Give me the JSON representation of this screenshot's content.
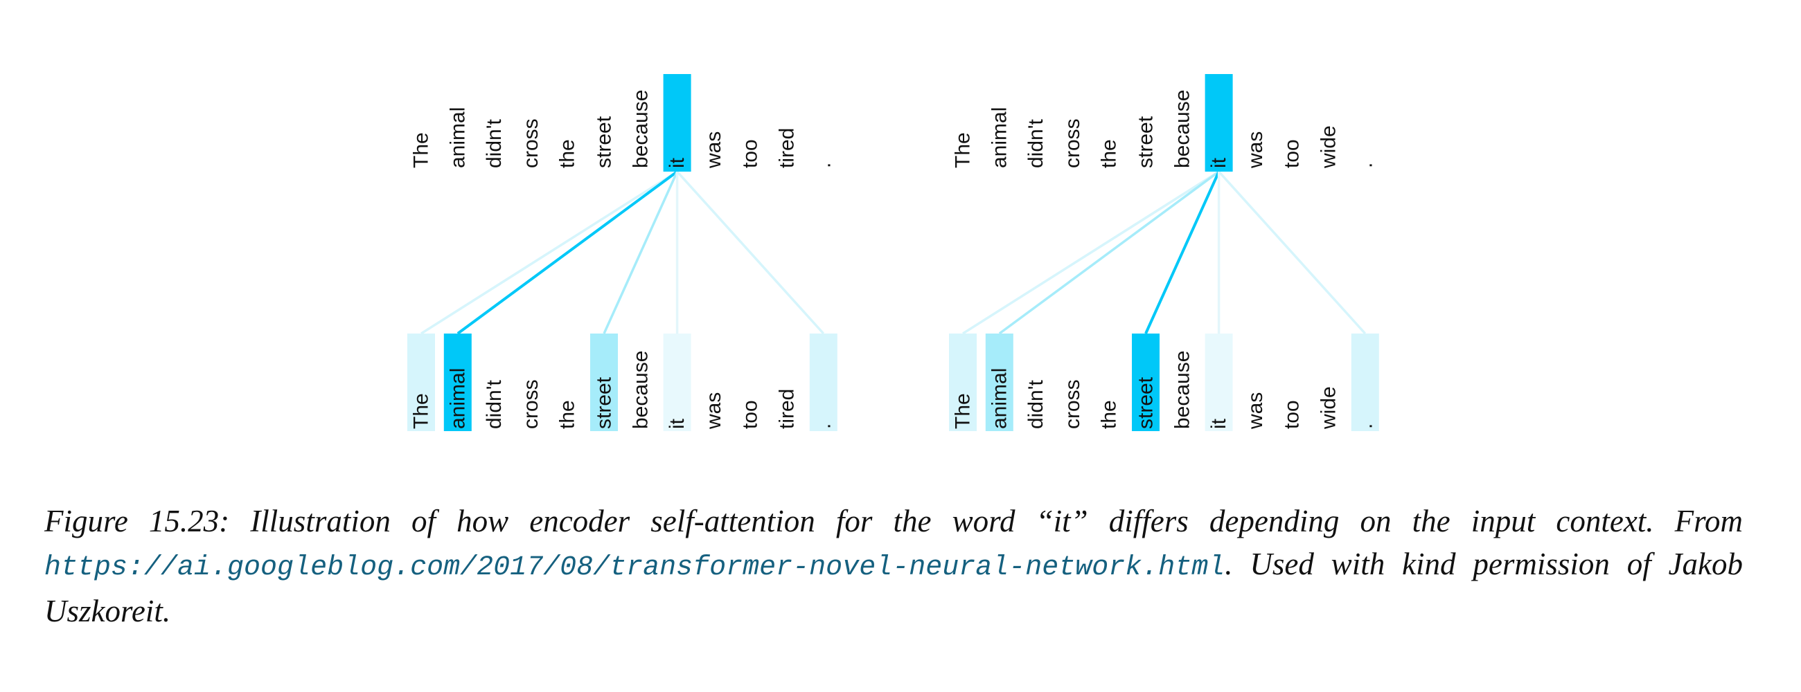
{
  "figure": {
    "panels": [
      {
        "top_tokens": [
          "The",
          "animal",
          "didn't",
          "cross",
          "the",
          "street",
          "because",
          "it",
          "was",
          "too",
          "tired",
          "."
        ],
        "bottom_tokens": [
          "The",
          "animal",
          "didn't",
          "cross",
          "the",
          "street",
          "because",
          "it",
          "was",
          "too",
          "tired",
          "."
        ]
      },
      {
        "top_tokens": [
          "The",
          "animal",
          "didn't",
          "cross",
          "the",
          "street",
          "because",
          "it",
          "was",
          "too",
          "wide",
          "."
        ],
        "bottom_tokens": [
          "The",
          "animal",
          "didn't",
          "cross",
          "the",
          "street",
          "because",
          "it",
          "was",
          "too",
          "wide",
          "."
        ]
      }
    ],
    "caption": {
      "label": "Figure 15.23:",
      "text": "Illustration of how encoder self-attention for the word “it” differs depending on the input context. From",
      "link": "https://ai.googleblog.com/2017/08/transformer-novel-neural-network.html",
      "after": ". Used with kind permission of Jakob Uszkoreit."
    }
  }
}
